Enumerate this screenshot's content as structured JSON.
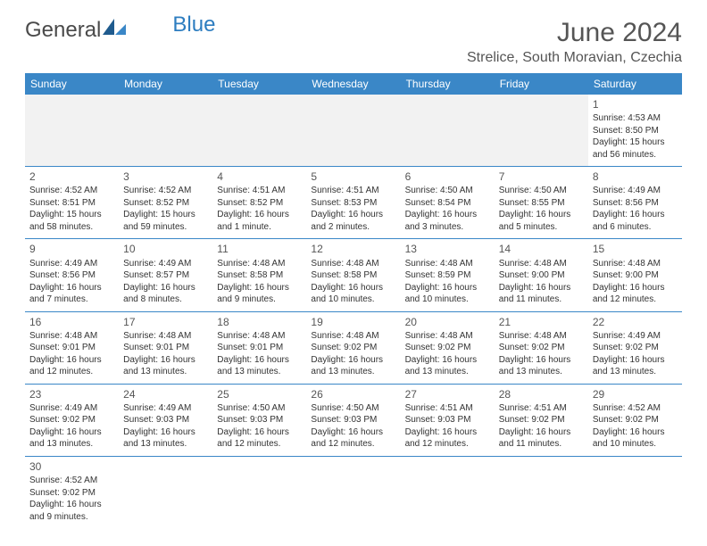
{
  "logo": {
    "general": "General",
    "blue": "Blue"
  },
  "title": "June 2024",
  "location": "Strelice, South Moravian, Czechia",
  "day_headers": [
    "Sunday",
    "Monday",
    "Tuesday",
    "Wednesday",
    "Thursday",
    "Friday",
    "Saturday"
  ],
  "colors": {
    "header_bg": "#3a87c7",
    "header_text": "#ffffff",
    "empty_bg": "#f2f2f2",
    "border": "#3a87c7",
    "text": "#333333",
    "title_text": "#555555"
  },
  "weeks": [
    [
      null,
      null,
      null,
      null,
      null,
      null,
      {
        "n": "1",
        "sr": "Sunrise: 4:53 AM",
        "ss": "Sunset: 8:50 PM",
        "dl": "Daylight: 15 hours and 56 minutes."
      }
    ],
    [
      {
        "n": "2",
        "sr": "Sunrise: 4:52 AM",
        "ss": "Sunset: 8:51 PM",
        "dl": "Daylight: 15 hours and 58 minutes."
      },
      {
        "n": "3",
        "sr": "Sunrise: 4:52 AM",
        "ss": "Sunset: 8:52 PM",
        "dl": "Daylight: 15 hours and 59 minutes."
      },
      {
        "n": "4",
        "sr": "Sunrise: 4:51 AM",
        "ss": "Sunset: 8:52 PM",
        "dl": "Daylight: 16 hours and 1 minute."
      },
      {
        "n": "5",
        "sr": "Sunrise: 4:51 AM",
        "ss": "Sunset: 8:53 PM",
        "dl": "Daylight: 16 hours and 2 minutes."
      },
      {
        "n": "6",
        "sr": "Sunrise: 4:50 AM",
        "ss": "Sunset: 8:54 PM",
        "dl": "Daylight: 16 hours and 3 minutes."
      },
      {
        "n": "7",
        "sr": "Sunrise: 4:50 AM",
        "ss": "Sunset: 8:55 PM",
        "dl": "Daylight: 16 hours and 5 minutes."
      },
      {
        "n": "8",
        "sr": "Sunrise: 4:49 AM",
        "ss": "Sunset: 8:56 PM",
        "dl": "Daylight: 16 hours and 6 minutes."
      }
    ],
    [
      {
        "n": "9",
        "sr": "Sunrise: 4:49 AM",
        "ss": "Sunset: 8:56 PM",
        "dl": "Daylight: 16 hours and 7 minutes."
      },
      {
        "n": "10",
        "sr": "Sunrise: 4:49 AM",
        "ss": "Sunset: 8:57 PM",
        "dl": "Daylight: 16 hours and 8 minutes."
      },
      {
        "n": "11",
        "sr": "Sunrise: 4:48 AM",
        "ss": "Sunset: 8:58 PM",
        "dl": "Daylight: 16 hours and 9 minutes."
      },
      {
        "n": "12",
        "sr": "Sunrise: 4:48 AM",
        "ss": "Sunset: 8:58 PM",
        "dl": "Daylight: 16 hours and 10 minutes."
      },
      {
        "n": "13",
        "sr": "Sunrise: 4:48 AM",
        "ss": "Sunset: 8:59 PM",
        "dl": "Daylight: 16 hours and 10 minutes."
      },
      {
        "n": "14",
        "sr": "Sunrise: 4:48 AM",
        "ss": "Sunset: 9:00 PM",
        "dl": "Daylight: 16 hours and 11 minutes."
      },
      {
        "n": "15",
        "sr": "Sunrise: 4:48 AM",
        "ss": "Sunset: 9:00 PM",
        "dl": "Daylight: 16 hours and 12 minutes."
      }
    ],
    [
      {
        "n": "16",
        "sr": "Sunrise: 4:48 AM",
        "ss": "Sunset: 9:01 PM",
        "dl": "Daylight: 16 hours and 12 minutes."
      },
      {
        "n": "17",
        "sr": "Sunrise: 4:48 AM",
        "ss": "Sunset: 9:01 PM",
        "dl": "Daylight: 16 hours and 13 minutes."
      },
      {
        "n": "18",
        "sr": "Sunrise: 4:48 AM",
        "ss": "Sunset: 9:01 PM",
        "dl": "Daylight: 16 hours and 13 minutes."
      },
      {
        "n": "19",
        "sr": "Sunrise: 4:48 AM",
        "ss": "Sunset: 9:02 PM",
        "dl": "Daylight: 16 hours and 13 minutes."
      },
      {
        "n": "20",
        "sr": "Sunrise: 4:48 AM",
        "ss": "Sunset: 9:02 PM",
        "dl": "Daylight: 16 hours and 13 minutes."
      },
      {
        "n": "21",
        "sr": "Sunrise: 4:48 AM",
        "ss": "Sunset: 9:02 PM",
        "dl": "Daylight: 16 hours and 13 minutes."
      },
      {
        "n": "22",
        "sr": "Sunrise: 4:49 AM",
        "ss": "Sunset: 9:02 PM",
        "dl": "Daylight: 16 hours and 13 minutes."
      }
    ],
    [
      {
        "n": "23",
        "sr": "Sunrise: 4:49 AM",
        "ss": "Sunset: 9:02 PM",
        "dl": "Daylight: 16 hours and 13 minutes."
      },
      {
        "n": "24",
        "sr": "Sunrise: 4:49 AM",
        "ss": "Sunset: 9:03 PM",
        "dl": "Daylight: 16 hours and 13 minutes."
      },
      {
        "n": "25",
        "sr": "Sunrise: 4:50 AM",
        "ss": "Sunset: 9:03 PM",
        "dl": "Daylight: 16 hours and 12 minutes."
      },
      {
        "n": "26",
        "sr": "Sunrise: 4:50 AM",
        "ss": "Sunset: 9:03 PM",
        "dl": "Daylight: 16 hours and 12 minutes."
      },
      {
        "n": "27",
        "sr": "Sunrise: 4:51 AM",
        "ss": "Sunset: 9:03 PM",
        "dl": "Daylight: 16 hours and 12 minutes."
      },
      {
        "n": "28",
        "sr": "Sunrise: 4:51 AM",
        "ss": "Sunset: 9:02 PM",
        "dl": "Daylight: 16 hours and 11 minutes."
      },
      {
        "n": "29",
        "sr": "Sunrise: 4:52 AM",
        "ss": "Sunset: 9:02 PM",
        "dl": "Daylight: 16 hours and 10 minutes."
      }
    ],
    [
      {
        "n": "30",
        "sr": "Sunrise: 4:52 AM",
        "ss": "Sunset: 9:02 PM",
        "dl": "Daylight: 16 hours and 9 minutes."
      },
      null,
      null,
      null,
      null,
      null,
      null
    ]
  ]
}
